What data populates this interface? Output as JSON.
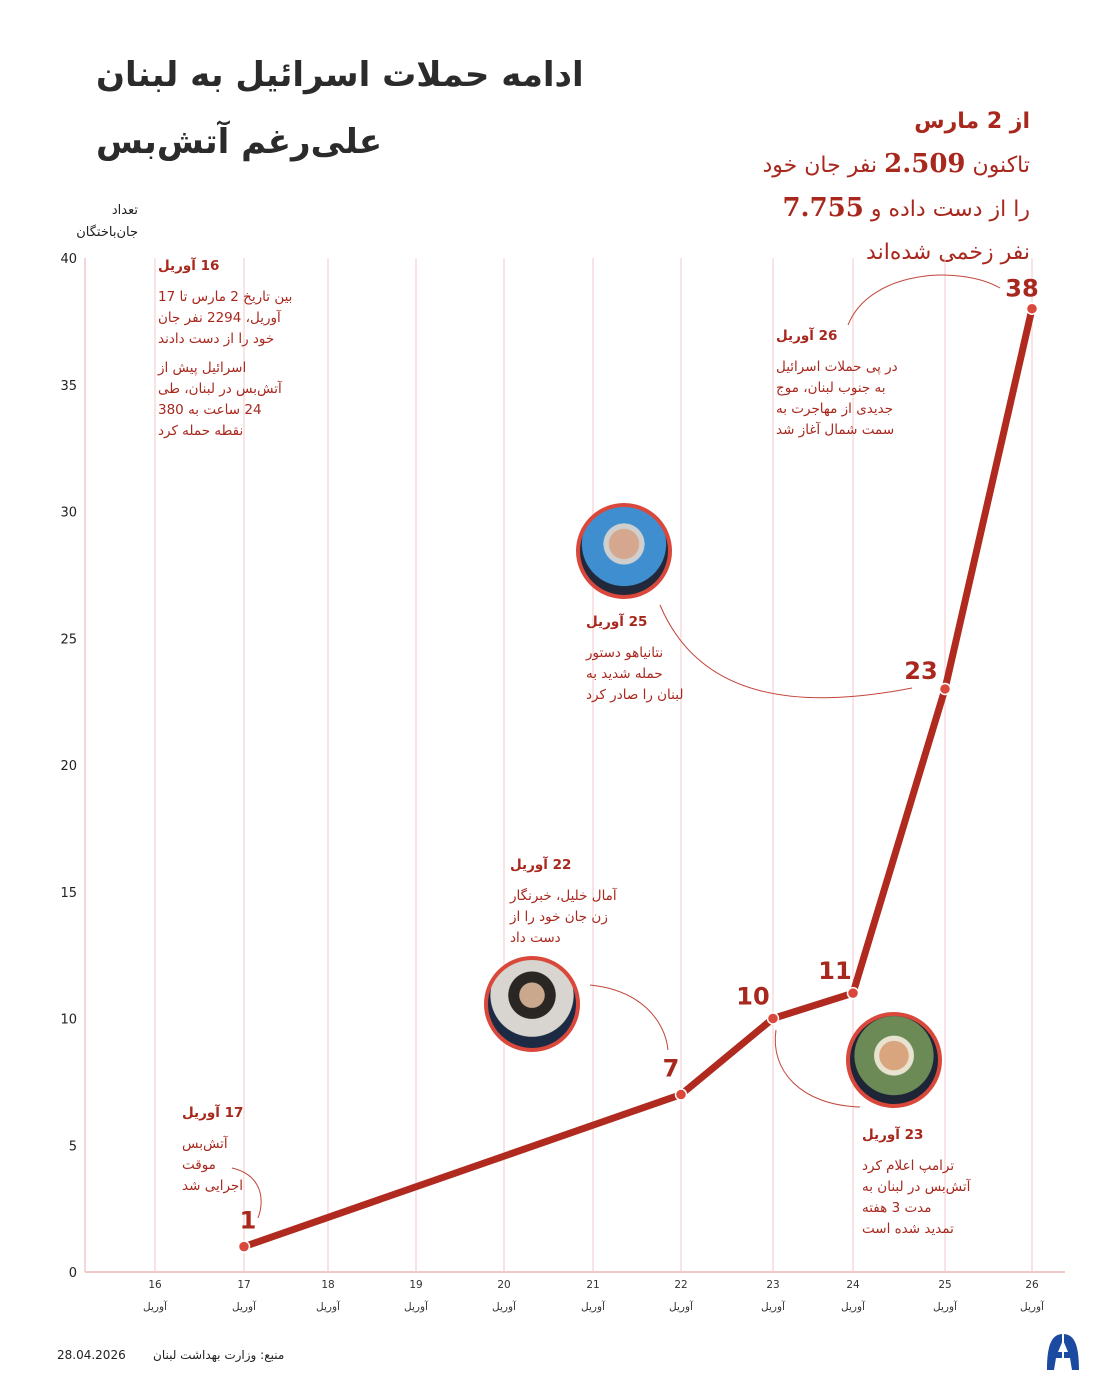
{
  "title": {
    "line1": "ادامه حملات اسرائیل به لبنان",
    "line2": "علی‌رغم آتش‌بس"
  },
  "summary": {
    "line1": "از 2 مارس",
    "line2_pre": "تاکنون",
    "killed": "2.509",
    "line2_post": "نفر جان خود",
    "line3_pre": "را از دست داده و",
    "injured": "7.755",
    "line4": "نفر زخمی شده‌اند"
  },
  "colors": {
    "accent": "#a8281e",
    "line": "#b02a1f",
    "grid": "#f1c9c9",
    "photo_border": "#d9483b"
  },
  "chart_data": {
    "type": "line",
    "ylabel": [
      "تعداد",
      "جان‌باختگان"
    ],
    "ylim": [
      0,
      40
    ],
    "yticks": [
      "0",
      "5",
      "10",
      "15",
      "20",
      "25",
      "30",
      "35",
      "40"
    ],
    "grid": "vertical",
    "categories": [
      {
        "day": "16",
        "month": "آوریل"
      },
      {
        "day": "17",
        "month": "آوریل"
      },
      {
        "day": "18",
        "month": "آوریل"
      },
      {
        "day": "19",
        "month": "آوریل"
      },
      {
        "day": "20",
        "month": "آوریل"
      },
      {
        "day": "21",
        "month": "آوریل"
      },
      {
        "day": "22",
        "month": "آوریل"
      },
      {
        "day": "23",
        "month": "آوریل"
      },
      {
        "day": "24",
        "month": "آوریل"
      },
      {
        "day": "25",
        "month": "آوریل"
      },
      {
        "day": "26",
        "month": "آوریل"
      }
    ],
    "points": [
      {
        "x": "17",
        "y": 1,
        "label": "1"
      },
      {
        "x": "22",
        "y": 7,
        "label": "7"
      },
      {
        "x": "23",
        "y": 10,
        "label": "10"
      },
      {
        "x": "24",
        "y": 11,
        "label": "11"
      },
      {
        "x": "25",
        "y": 23,
        "label": "23"
      },
      {
        "x": "26",
        "y": 38,
        "label": "38"
      }
    ]
  },
  "annotations": {
    "a16": {
      "date": "16 آوریل",
      "p1": [
        "بین تاریخ 2 مارس تا 17",
        "آوریل، 2294 نفر جان",
        "خود را از دست دادند"
      ],
      "p2": [
        "اسرائیل پیش از",
        "آتش‌بس در لبنان، طی",
        "24 ساعت به 380",
        "نقطه حمله کرد"
      ]
    },
    "a17": {
      "date": "17 آوریل",
      "lines": [
        "آتش‌بس",
        "موقت",
        "اجرایی شد"
      ]
    },
    "a22": {
      "date": "22 آوریل",
      "lines": [
        "آمال خلیل، خبرنگار",
        "زن جان خود را از",
        "دست داد"
      ]
    },
    "a23": {
      "date": "23 آوریل",
      "lines": [
        "ترامپ اعلام کرد",
        "آتش‌بس در لبنان به",
        "مدت 3 هفته",
        "تمدید شده است"
      ]
    },
    "a25": {
      "date": "25 آوریل",
      "lines": [
        "نتانیاهو دستور",
        "حمله شدید به",
        "لبنان را صادر کرد"
      ]
    },
    "a26": {
      "date": "26 آوریل",
      "lines": [
        "در پی حملات اسرائیل",
        "به جنوب لبنان، موج",
        "جدیدی از مهاجرت به",
        "سمت شمال آغاز شد"
      ]
    }
  },
  "footer": {
    "source": "منبع: وزارت بهداشت لبنان",
    "date": "28.04.2026",
    "logo": "AA"
  }
}
